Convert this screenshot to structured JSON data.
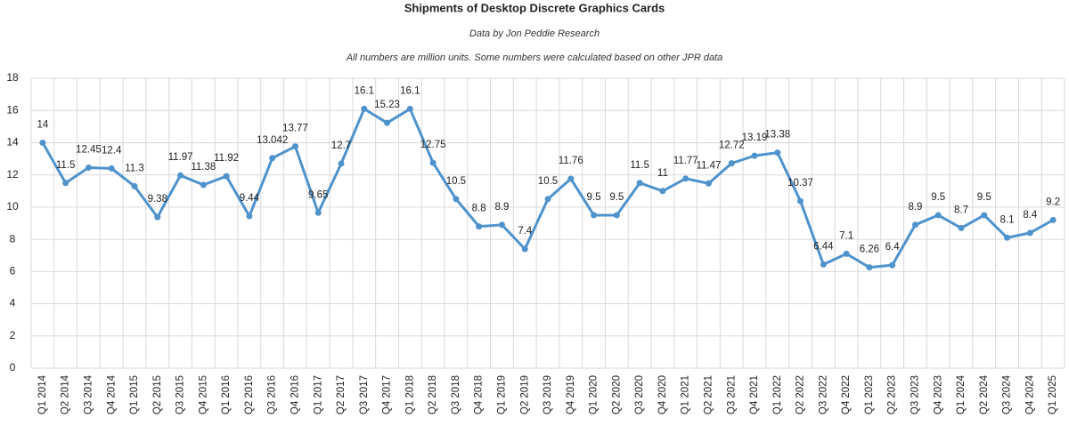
{
  "chart_data": {
    "type": "line",
    "title": "Shipments of Desktop Discrete Graphics Cards",
    "subtitle": "Data by Jon Peddie Research",
    "note": "All numbers are million units. Some numbers were calculated based on other JPR data",
    "categories": [
      "Q1 2014",
      "Q2 2014",
      "Q3 2014",
      "Q4 2014",
      "Q1 2015",
      "Q2 2015",
      "Q3 2015",
      "Q4 2015",
      "Q1 2016",
      "Q2 2016",
      "Q3 2016",
      "Q4 2016",
      "Q1 2017",
      "Q2 2017",
      "Q3 2017",
      "Q4 2017",
      "Q1 2018",
      "Q2 2018",
      "Q3 2018",
      "Q4 2018",
      "Q1 2019",
      "Q2 2019",
      "Q3 2019",
      "Q4 2019",
      "Q1 2020",
      "Q2 2020",
      "Q3 2020",
      "Q4 2020",
      "Q1 2021",
      "Q2 2021",
      "Q3 2021",
      "Q4 2021",
      "Q1 2022",
      "Q2 2022",
      "Q3 2022",
      "Q4 2022",
      "Q1 2023",
      "Q2 2023",
      "Q3 2023",
      "Q4 2023",
      "Q1 2024",
      "Q2 2024",
      "Q3 2024",
      "Q4 2024",
      "Q1 2025"
    ],
    "values": [
      14,
      11.5,
      12.45,
      12.4,
      11.3,
      9.38,
      11.97,
      11.38,
      11.92,
      9.44,
      13.042,
      13.77,
      9.65,
      12.7,
      16.1,
      15.23,
      16.1,
      12.75,
      10.5,
      8.8,
      8.9,
      7.4,
      10.5,
      11.76,
      9.5,
      9.5,
      11.5,
      11,
      11.77,
      11.47,
      12.72,
      13.19,
      13.38,
      10.37,
      6.44,
      7.1,
      6.26,
      6.4,
      8.9,
      9.5,
      8.7,
      9.5,
      8.1,
      8.4,
      9.2
    ],
    "color": "#4f93cc",
    "ylim": [
      0,
      18
    ],
    "yticks": [
      0,
      2,
      4,
      6,
      8,
      10,
      12,
      14,
      16,
      18
    ],
    "grid": true
  }
}
